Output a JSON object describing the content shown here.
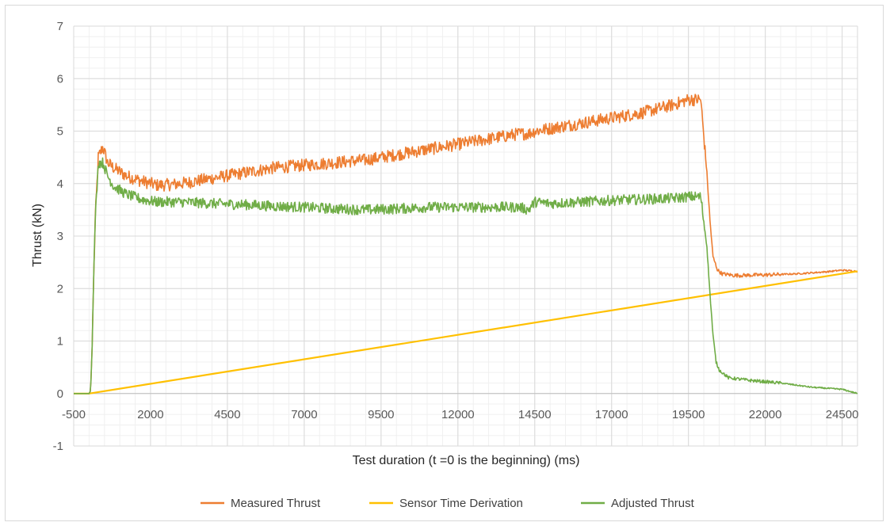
{
  "chart_data": {
    "type": "line",
    "title": "",
    "xlabel": "Test duration (t =0 is the beginning) (ms)",
    "ylabel": "Thrust (kN)",
    "xlim": [
      -500,
      25000
    ],
    "ylim": [
      -1,
      7
    ],
    "x_ticks": [
      -500,
      2000,
      4500,
      7000,
      9500,
      12000,
      14500,
      17000,
      19500,
      22000,
      24500
    ],
    "y_ticks": [
      -1,
      0,
      1,
      2,
      3,
      4,
      5,
      6,
      7
    ],
    "grid": "major and minor",
    "legend": "bottom",
    "series": [
      {
        "name": "Measured Thrust",
        "color": "#ED7D31",
        "x": [
          -500,
          0,
          50,
          100,
          150,
          200,
          300,
          450,
          600,
          800,
          1200,
          1700,
          2200,
          2700,
          3200,
          4000,
          5000,
          6000,
          7000,
          8000,
          9000,
          10000,
          11000,
          12000,
          13000,
          14000,
          14300,
          14500,
          15000,
          16000,
          17000,
          18000,
          19000,
          19500,
          19900,
          20100,
          20200,
          20300,
          20450,
          20600,
          21000,
          22000,
          23000,
          24000,
          24500,
          25000
        ],
        "y": [
          0.0,
          0.0,
          0.05,
          0.9,
          2.2,
          3.3,
          4.5,
          4.7,
          4.4,
          4.3,
          4.15,
          4.05,
          3.97,
          3.98,
          4.02,
          4.1,
          4.2,
          4.3,
          4.35,
          4.4,
          4.45,
          4.55,
          4.65,
          4.75,
          4.85,
          4.95,
          4.95,
          5.0,
          5.05,
          5.15,
          5.25,
          5.35,
          5.5,
          5.6,
          5.6,
          4.2,
          3.3,
          2.6,
          2.35,
          2.28,
          2.25,
          2.26,
          2.28,
          2.32,
          2.35,
          2.33
        ],
        "noise": 0.12
      },
      {
        "name": "Sensor Time Derivation",
        "color": "#FFC000",
        "x": [
          -500,
          0,
          25000
        ],
        "y": [
          0.0,
          0.0,
          2.33
        ],
        "noise": 0
      },
      {
        "name": "Adjusted Thrust",
        "color": "#70AD47",
        "x": [
          -500,
          0,
          50,
          100,
          150,
          200,
          300,
          450,
          600,
          800,
          1200,
          1700,
          2200,
          3000,
          4000,
          5000,
          6000,
          7000,
          8000,
          9000,
          10000,
          11000,
          12000,
          13000,
          14000,
          14300,
          14500,
          15000,
          16000,
          17000,
          18000,
          19000,
          19500,
          19900,
          20100,
          20200,
          20300,
          20400,
          20500,
          20800,
          21500,
          22500,
          23500,
          24500,
          25000
        ],
        "y": [
          0.0,
          0.0,
          0.05,
          0.9,
          2.2,
          3.3,
          4.4,
          4.4,
          4.15,
          3.95,
          3.8,
          3.7,
          3.65,
          3.65,
          3.62,
          3.6,
          3.57,
          3.55,
          3.52,
          3.5,
          3.52,
          3.55,
          3.55,
          3.55,
          3.55,
          3.5,
          3.65,
          3.62,
          3.65,
          3.68,
          3.7,
          3.72,
          3.75,
          3.75,
          2.8,
          1.9,
          1.1,
          0.6,
          0.45,
          0.3,
          0.25,
          0.2,
          0.12,
          0.08,
          0.0
        ],
        "noise": 0.1
      }
    ]
  }
}
